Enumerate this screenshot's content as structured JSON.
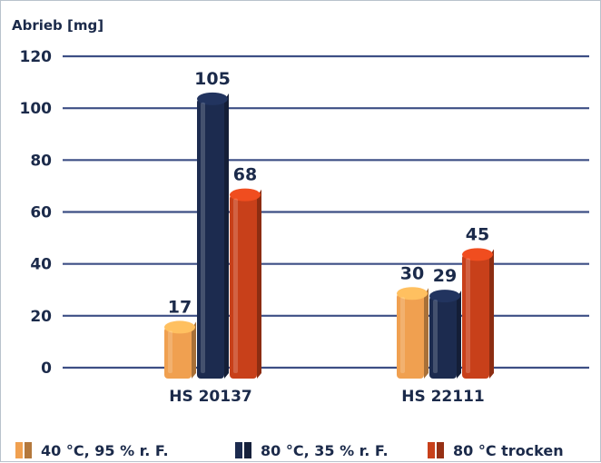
{
  "chart_data": {
    "type": "bar",
    "ylabel": "Abrieb [mg]",
    "ylim": [
      0,
      120
    ],
    "yticks": [
      0,
      20,
      40,
      60,
      80,
      100,
      120
    ],
    "grid": true,
    "legend_position": "bottom",
    "categories": [
      "HS 20137",
      "HS 22111"
    ],
    "series": [
      {
        "name": "40 °C, 95 % r. F.",
        "values": [
          17,
          30
        ],
        "color": "#f0a050"
      },
      {
        "name": "80 °C, 35 % r. F.",
        "values": [
          105,
          29
        ],
        "color": "#1c2b4f"
      },
      {
        "name": "80 °C trocken",
        "values": [
          68,
          45
        ],
        "color": "#c8401a"
      }
    ]
  }
}
